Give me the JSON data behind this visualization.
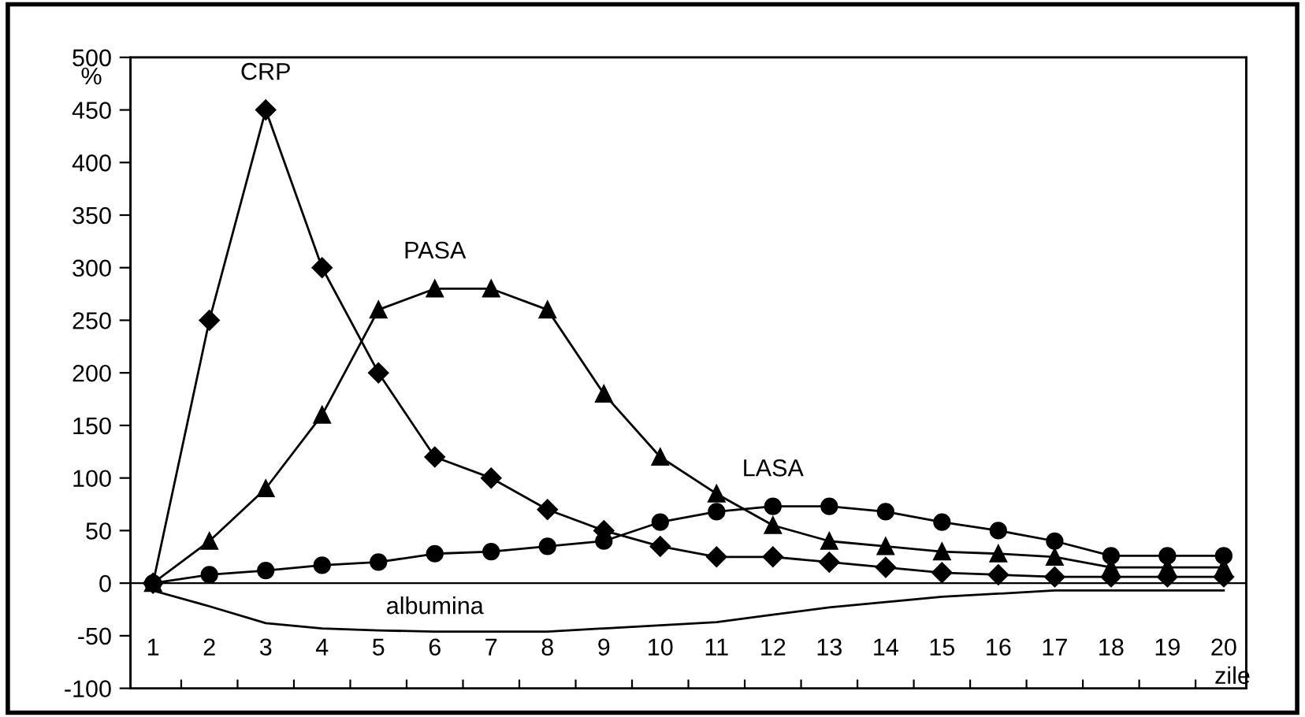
{
  "chart_data": {
    "type": "line",
    "ylabel": "%",
    "xlabel": "zile",
    "categories": [
      "1",
      "2",
      "3",
      "4",
      "5",
      "6",
      "7",
      "8",
      "9",
      "10",
      "11",
      "12",
      "13",
      "14",
      "15",
      "16",
      "17",
      "18",
      "19",
      "20"
    ],
    "series": [
      {
        "name": "CRP",
        "color": "#000000",
        "marker": "diamond",
        "values": [
          0,
          250,
          450,
          300,
          200,
          120,
          100,
          70,
          50,
          35,
          25,
          25,
          20,
          15,
          10,
          8,
          6,
          6,
          6,
          6
        ]
      },
      {
        "name": "PASA",
        "color": "#000000",
        "marker": "triangle",
        "values": [
          0,
          40,
          90,
          160,
          260,
          280,
          280,
          260,
          180,
          120,
          85,
          55,
          40,
          35,
          30,
          28,
          25,
          15,
          15,
          15
        ]
      },
      {
        "name": "LASA",
        "color": "#000000",
        "marker": "circle",
        "values": [
          0,
          8,
          12,
          17,
          20,
          28,
          30,
          35,
          40,
          58,
          68,
          73,
          73,
          68,
          58,
          50,
          40,
          26,
          26,
          26
        ]
      },
      {
        "name": "albumina",
        "color": "#000000",
        "marker": "none",
        "values": [
          -7,
          -22,
          -38,
          -43,
          -45,
          -46,
          -46,
          -46,
          -43,
          -40,
          -37,
          -30,
          -23,
          -18,
          -13,
          -10,
          -7,
          -7,
          -7,
          -7
        ]
      }
    ],
    "ylim": [
      -100,
      500
    ],
    "yticks": [
      -100,
      -50,
      0,
      50,
      100,
      150,
      200,
      250,
      300,
      350,
      400,
      450,
      500
    ],
    "grid": false,
    "legend": false,
    "line_style": "solid"
  }
}
